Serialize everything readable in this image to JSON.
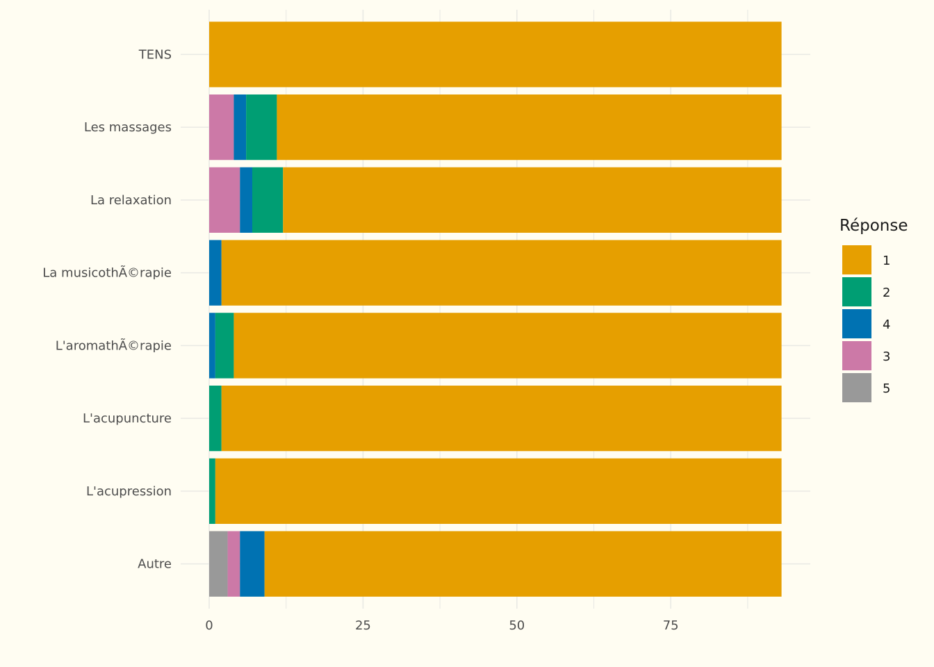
{
  "chart_data": {
    "type": "bar",
    "orientation": "horizontal",
    "stacked": true,
    "categories": [
      "TENS",
      "Les massages",
      "La relaxation",
      "La musicothÃ©rapie",
      "L'aromathÃ©rapie",
      "L'acupuncture",
      "L'acupression",
      "Autre"
    ],
    "series": [
      {
        "name": "5",
        "color": "#999999",
        "values": [
          0,
          0,
          0,
          0,
          0,
          0,
          0,
          3
        ]
      },
      {
        "name": "3",
        "color": "#cc79a7",
        "values": [
          0,
          4,
          5,
          0,
          0,
          0,
          0,
          2
        ]
      },
      {
        "name": "4",
        "color": "#0072b2",
        "values": [
          0,
          2,
          2,
          2,
          1,
          0,
          0,
          4
        ]
      },
      {
        "name": "2",
        "color": "#009e73",
        "values": [
          0,
          5,
          5,
          0,
          3,
          2,
          1,
          0
        ]
      },
      {
        "name": "1",
        "color": "#e69f00",
        "values": [
          93,
          82,
          81,
          91,
          89,
          91,
          92,
          84
        ]
      }
    ],
    "legend": {
      "title": "Réponse",
      "order": [
        "1",
        "2",
        "4",
        "3",
        "5"
      ],
      "position": "right"
    },
    "xticks": [
      "0",
      "25",
      "50",
      "75"
    ],
    "xlim": [
      0,
      97
    ],
    "grid": true,
    "title": "",
    "xlabel": "",
    "ylabel": ""
  }
}
